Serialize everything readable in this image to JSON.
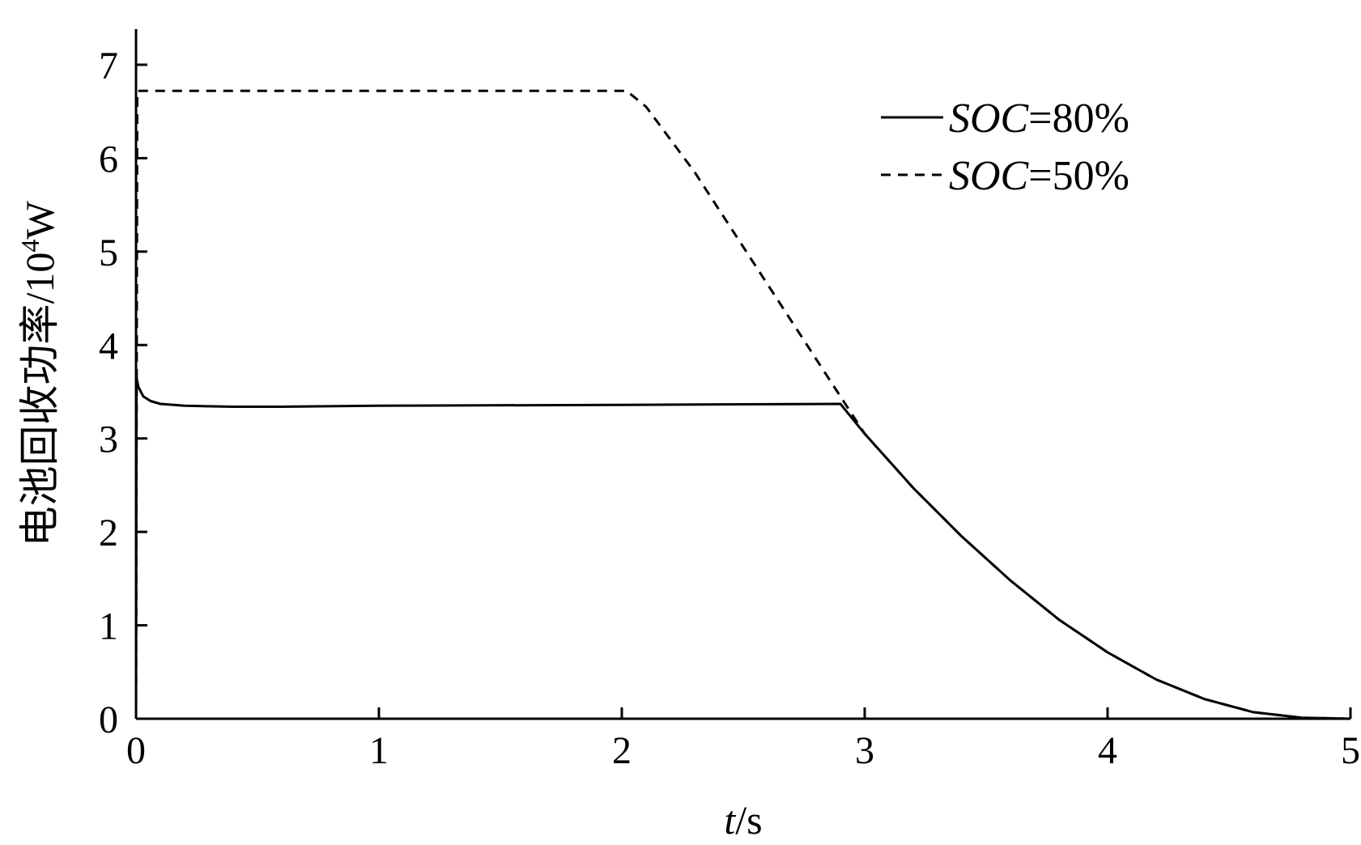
{
  "chart_data": {
    "type": "line",
    "xlabel": {
      "var": "t",
      "unit": "/s"
    },
    "ylabel": {
      "text": "电池回收功率/10",
      "sup": "4",
      "unit": "W"
    },
    "xlim": [
      0,
      5
    ],
    "ylim": [
      0,
      7
    ],
    "xticks": [
      "0",
      "1",
      "2",
      "3",
      "4",
      "5"
    ],
    "yticks": [
      "0",
      "1",
      "2",
      "3",
      "4",
      "5",
      "6",
      "7"
    ],
    "grid": false,
    "legend_position": "top-right",
    "series": [
      {
        "name": "SOC=80%",
        "legend_var": "SOC",
        "legend_rest": "=80%",
        "style": "solid",
        "color": "#000000",
        "x": [
          0,
          0.002,
          0.01,
          0.03,
          0.06,
          0.1,
          0.2,
          0.4,
          0.6,
          1.0,
          2.0,
          2.9,
          3.0,
          3.2,
          3.4,
          3.6,
          3.8,
          4.0,
          4.2,
          4.4,
          4.6,
          4.8,
          5.0
        ],
        "y": [
          0,
          3.65,
          3.55,
          3.45,
          3.4,
          3.37,
          3.35,
          3.34,
          3.34,
          3.35,
          3.36,
          3.37,
          3.05,
          2.47,
          1.95,
          1.48,
          1.06,
          0.71,
          0.42,
          0.21,
          0.07,
          0.01,
          0.0
        ]
      },
      {
        "name": "SOC=50%",
        "legend_var": "SOC",
        "legend_rest": "=50%",
        "style": "dashed",
        "color": "#000000",
        "x": [
          0,
          0.005,
          2.02,
          2.1,
          2.3,
          2.5,
          2.7,
          2.9,
          3.0,
          3.2,
          3.4,
          3.6,
          3.8,
          4.0,
          4.2,
          4.4,
          4.6,
          4.8,
          5.0
        ],
        "y": [
          0,
          6.72,
          6.72,
          6.55,
          5.85,
          5.05,
          4.25,
          3.45,
          3.05,
          2.47,
          1.95,
          1.48,
          1.06,
          0.71,
          0.42,
          0.21,
          0.07,
          0.01,
          0.0
        ]
      }
    ]
  }
}
